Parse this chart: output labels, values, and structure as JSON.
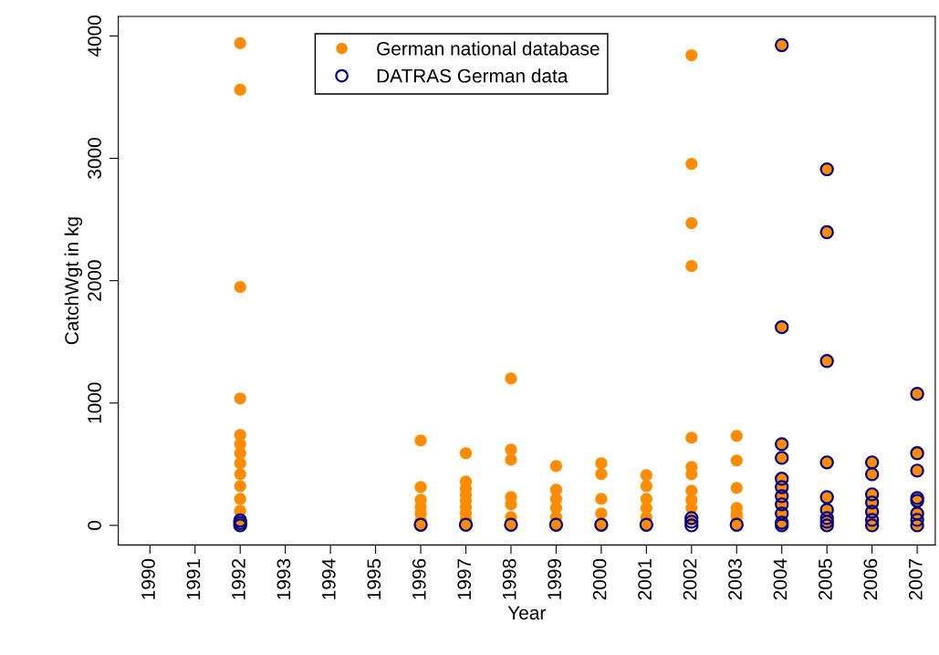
{
  "chart_data": {
    "type": "scatter",
    "xlabel": "Year",
    "ylabel": "CatchWgt in kg",
    "xlim": [
      1989.3,
      2007.4
    ],
    "ylim": [
      -160,
      4160
    ],
    "xticks": [
      1990,
      1991,
      1992,
      1993,
      1994,
      1995,
      1996,
      1997,
      1998,
      1999,
      2000,
      2001,
      2002,
      2003,
      2004,
      2005,
      2006,
      2007
    ],
    "yticks": [
      0,
      1000,
      2000,
      3000,
      4000
    ],
    "grid": false,
    "legend": "top",
    "marker": "circle",
    "series": [
      {
        "name": "German national database",
        "color": "#ff8c00",
        "x": [
          1992,
          1992,
          1992,
          1992,
          1992,
          1992,
          1992,
          1992,
          1992,
          1992,
          1992,
          1992,
          1992,
          1992,
          1996,
          1996,
          1996,
          1996,
          1996,
          1996,
          1996,
          1997,
          1997,
          1997,
          1997,
          1997,
          1997,
          1997,
          1997,
          1997,
          1998,
          1998,
          1998,
          1998,
          1998,
          1998,
          1998,
          1999,
          1999,
          1999,
          1999,
          1999,
          1999,
          2000,
          2000,
          2000,
          2000,
          2000,
          2001,
          2001,
          2001,
          2001,
          2001,
          2001,
          2002,
          2002,
          2002,
          2002,
          2002,
          2002,
          2002,
          2002,
          2002,
          2002,
          2002,
          2003,
          2003,
          2003,
          2003,
          2003,
          2003,
          2003,
          2004,
          2004,
          2004,
          2004,
          2004,
          2004,
          2004,
          2004,
          2004,
          2004,
          2005,
          2005,
          2005,
          2005,
          2005,
          2005,
          2005,
          2005,
          2006,
          2006,
          2006,
          2006,
          2006,
          2006,
          2006,
          2007,
          2007,
          2007,
          2007,
          2007,
          2007,
          2007,
          2007
        ],
        "values": [
          3940,
          3560,
          1948,
          1037,
          739,
          664,
          590,
          507,
          418,
          321,
          216,
          119,
          22,
          5,
          694,
          313,
          209,
          150,
          97,
          40,
          5,
          590,
          358,
          300,
          250,
          200,
          150,
          100,
          50,
          5,
          1201,
          619,
          537,
          231,
          172,
          67,
          5,
          485,
          291,
          216,
          142,
          67,
          5,
          507,
          420,
          216,
          97,
          5,
          410,
          321,
          216,
          142,
          67,
          5,
          3843,
          2955,
          2470,
          2119,
          716,
          478,
          418,
          284,
          209,
          142,
          45,
          731,
          530,
          306,
          142,
          97,
          67,
          5,
          3925,
          1620,
          664,
          552,
          381,
          313,
          239,
          172,
          97,
          0,
          2910,
          2396,
          1343,
          515,
          231,
          127,
          60,
          0,
          515,
          418,
          254,
          187,
          112,
          45,
          0,
          1075,
          590,
          448,
          224,
          201,
          97,
          45,
          0
        ]
      },
      {
        "name": "DATRAS German data",
        "color": "#00008b",
        "x": [
          1992,
          1992,
          1992,
          1996,
          1997,
          1998,
          1999,
          2000,
          2001,
          2002,
          2002,
          2002,
          2003,
          2004,
          2004,
          2004,
          2004,
          2004,
          2004,
          2004,
          2004,
          2004,
          2004,
          2004,
          2005,
          2005,
          2005,
          2005,
          2005,
          2005,
          2005,
          2005,
          2005,
          2006,
          2006,
          2006,
          2006,
          2006,
          2006,
          2006,
          2007,
          2007,
          2007,
          2007,
          2007,
          2007,
          2007,
          2007
        ],
        "values": [
          40,
          20,
          0,
          5,
          5,
          5,
          5,
          5,
          5,
          60,
          30,
          0,
          5,
          3925,
          1620,
          664,
          552,
          381,
          313,
          239,
          172,
          97,
          22,
          0,
          2910,
          2396,
          1343,
          515,
          231,
          127,
          60,
          30,
          0,
          515,
          418,
          254,
          187,
          112,
          45,
          0,
          1075,
          590,
          448,
          224,
          201,
          97,
          45,
          0
        ]
      }
    ]
  }
}
